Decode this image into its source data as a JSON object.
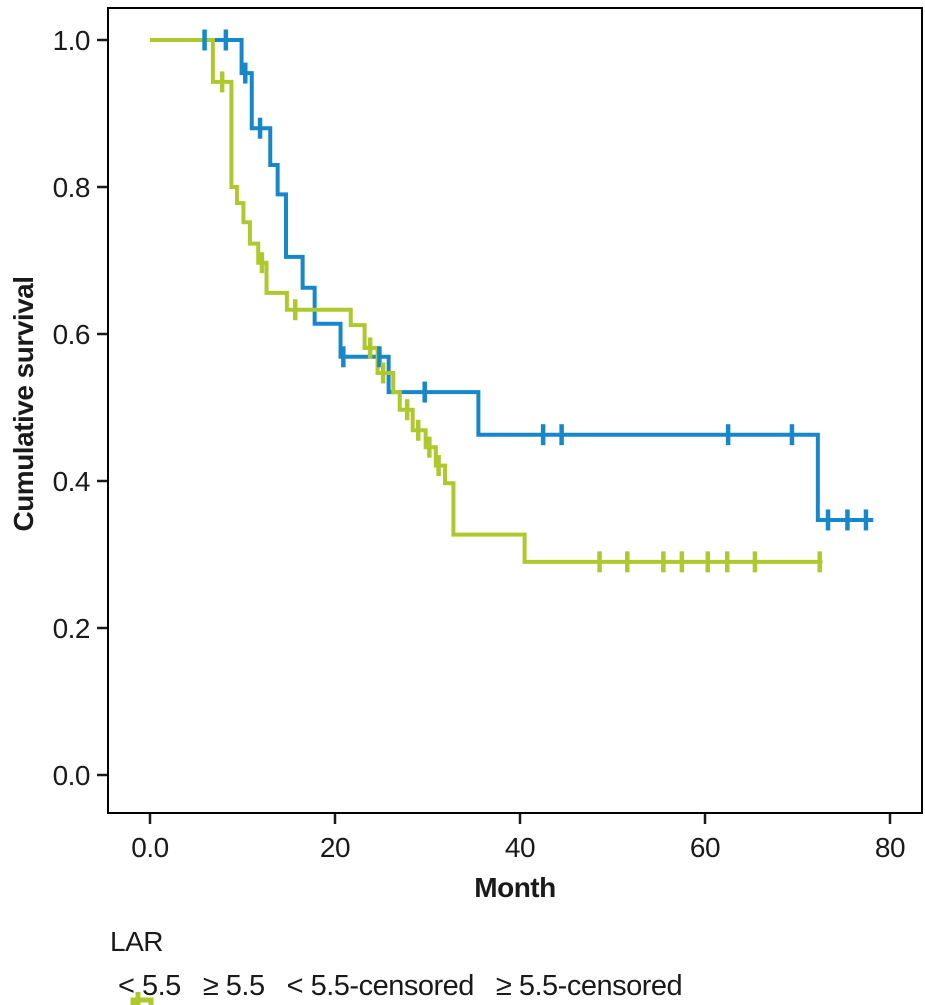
{
  "figure": {
    "y_axis": {
      "title": "Cumulative survival",
      "tick_labels": [
        "1.0",
        "0.8",
        "0.6",
        "0.4",
        "0.2",
        "0.0"
      ],
      "tick_values": [
        1.0,
        0.8,
        0.6,
        0.4,
        0.2,
        0.0
      ]
    },
    "x_axis": {
      "title": "Month",
      "tick_labels": [
        "0.0",
        "20",
        "40",
        "60",
        "80"
      ],
      "tick_values": [
        0,
        20,
        40,
        60,
        80
      ]
    },
    "colors": {
      "lt55_blue": "#1688c9",
      "ge55_green": "#afc82d",
      "axis": "#000000",
      "text": "#1a1a1a"
    }
  },
  "legend": {
    "title": "LAR",
    "items": [
      {
        "label": "< 5.5",
        "marker": "step-line",
        "color": "#1688c9"
      },
      {
        "label": "≥ 5.5",
        "marker": "step-line",
        "color": "#afc82d"
      },
      {
        "label": "< 5.5-censored",
        "marker": "plus",
        "color": "#1688c9"
      },
      {
        "label": "≥ 5.5-censored",
        "marker": "plus",
        "color": "#afc82d"
      }
    ]
  },
  "chart_data": {
    "type": "line",
    "subtype": "kaplan-meier-step",
    "title": "",
    "xlabel": "Month",
    "ylabel": "Cumulative survival",
    "xlim": [
      -4.5,
      83.5
    ],
    "ylim": [
      -0.052,
      1.044
    ],
    "grid": false,
    "legend_position": "bottom",
    "series": [
      {
        "name": "LAR < 5.5",
        "color": "#1688c9",
        "steps": [
          [
            0,
            1.0
          ],
          [
            9.9,
            0.955
          ],
          [
            11.0,
            0.88
          ],
          [
            13.0,
            0.83
          ],
          [
            13.8,
            0.79
          ],
          [
            14.7,
            0.705
          ],
          [
            16.5,
            0.663
          ],
          [
            17.8,
            0.614
          ],
          [
            20.6,
            0.569
          ],
          [
            25.8,
            0.521
          ],
          [
            35.5,
            0.463
          ],
          [
            72.2,
            0.347
          ]
        ],
        "end_month": 78.2,
        "censored": [
          [
            5.9,
            1.0
          ],
          [
            8.2,
            1.0
          ],
          [
            10.3,
            0.955
          ],
          [
            11.9,
            0.88
          ],
          [
            20.9,
            0.569
          ],
          [
            24.8,
            0.569
          ],
          [
            29.7,
            0.521
          ],
          [
            42.5,
            0.463
          ],
          [
            44.5,
            0.463
          ],
          [
            62.5,
            0.463
          ],
          [
            69.4,
            0.463
          ],
          [
            73.3,
            0.347
          ],
          [
            75.4,
            0.347
          ],
          [
            77.4,
            0.347
          ]
        ]
      },
      {
        "name": "LAR ≥ 5.5",
        "color": "#afc82d",
        "steps": [
          [
            0,
            1.0
          ],
          [
            6.8,
            0.943
          ],
          [
            8.8,
            0.8
          ],
          [
            9.4,
            0.778
          ],
          [
            10.1,
            0.752
          ],
          [
            10.8,
            0.723
          ],
          [
            11.7,
            0.697
          ],
          [
            12.6,
            0.656
          ],
          [
            14.8,
            0.633
          ],
          [
            21.7,
            0.612
          ],
          [
            23.2,
            0.581
          ],
          [
            24.6,
            0.547
          ],
          [
            26.3,
            0.521
          ],
          [
            27.0,
            0.497
          ],
          [
            28.4,
            0.469
          ],
          [
            29.8,
            0.446
          ],
          [
            30.9,
            0.421
          ],
          [
            31.9,
            0.397
          ],
          [
            32.8,
            0.327
          ],
          [
            40.5,
            0.29
          ]
        ],
        "end_month": 72.7,
        "censored": [
          [
            7.8,
            0.943
          ],
          [
            12.1,
            0.697
          ],
          [
            15.7,
            0.633
          ],
          [
            23.8,
            0.581
          ],
          [
            25.2,
            0.547
          ],
          [
            27.8,
            0.497
          ],
          [
            29.0,
            0.469
          ],
          [
            30.2,
            0.446
          ],
          [
            31.2,
            0.421
          ],
          [
            48.6,
            0.29
          ],
          [
            51.6,
            0.29
          ],
          [
            55.5,
            0.29
          ],
          [
            57.5,
            0.29
          ],
          [
            60.3,
            0.29
          ],
          [
            62.4,
            0.29
          ],
          [
            65.4,
            0.29
          ],
          [
            72.4,
            0.29
          ]
        ]
      }
    ]
  }
}
